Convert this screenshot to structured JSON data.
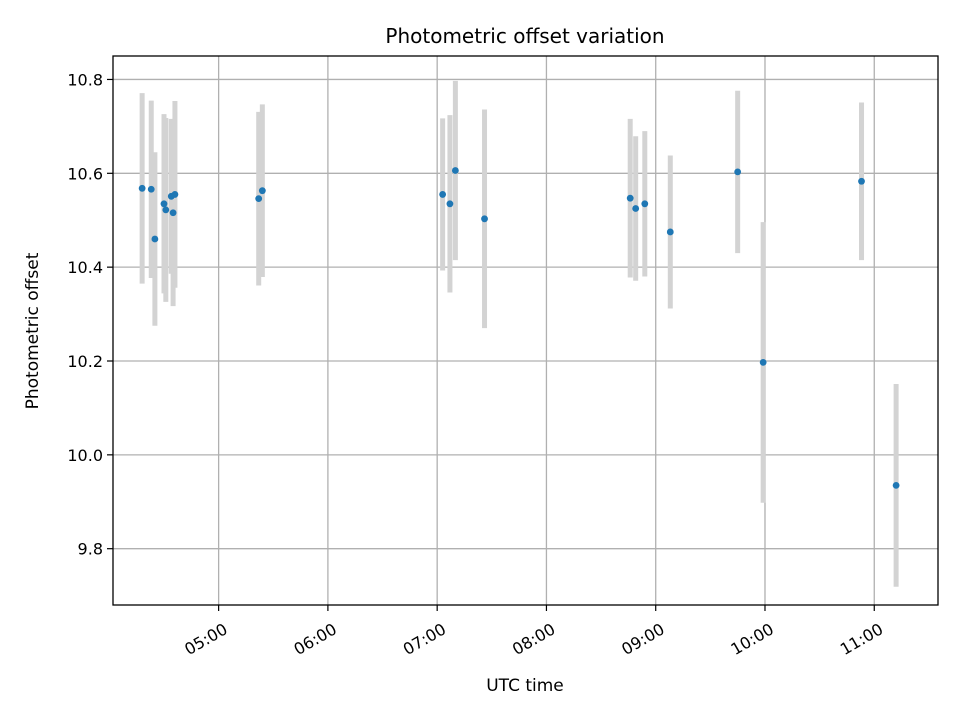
{
  "chart_data": {
    "type": "scatter",
    "title": "Photometric offset variation",
    "xlabel": "UTC time",
    "ylabel": "Photometric offset",
    "xlim": [
      "04:02",
      "11:35"
    ],
    "ylim": [
      9.68,
      10.85
    ],
    "x_ticks": [
      "05:00",
      "06:00",
      "07:00",
      "08:00",
      "09:00",
      "10:00",
      "11:00"
    ],
    "y_ticks": [
      "9.8",
      "10.0",
      "10.2",
      "10.4",
      "10.6",
      "10.8"
    ],
    "grid": true,
    "colors": {
      "marker": "#1f77b4",
      "errorbar": "#d3d3d3",
      "grid": "#b0b0b0"
    },
    "points": [
      {
        "x": "04:18",
        "y": 10.568,
        "err": 0.203
      },
      {
        "x": "04:23",
        "y": 10.566,
        "err": 0.189
      },
      {
        "x": "04:25",
        "y": 10.46,
        "err": 0.185
      },
      {
        "x": "04:30",
        "y": 10.535,
        "err": 0.191
      },
      {
        "x": "04:31",
        "y": 10.522,
        "err": 0.196
      },
      {
        "x": "04:34",
        "y": 10.551,
        "err": 0.165
      },
      {
        "x": "04:35",
        "y": 10.516,
        "err": 0.199
      },
      {
        "x": "04:36",
        "y": 10.555,
        "err": 0.199
      },
      {
        "x": "05:22",
        "y": 10.546,
        "err": 0.185
      },
      {
        "x": "05:24",
        "y": 10.563,
        "err": 0.184
      },
      {
        "x": "07:03",
        "y": 10.555,
        "err": 0.162
      },
      {
        "x": "07:07",
        "y": 10.535,
        "err": 0.189
      },
      {
        "x": "07:10",
        "y": 10.606,
        "err": 0.191
      },
      {
        "x": "07:26",
        "y": 10.503,
        "err": 0.233
      },
      {
        "x": "08:46",
        "y": 10.547,
        "err": 0.169
      },
      {
        "x": "08:49",
        "y": 10.525,
        "err": 0.154
      },
      {
        "x": "08:54",
        "y": 10.535,
        "err": 0.155
      },
      {
        "x": "09:08",
        "y": 10.475,
        "err": 0.163
      },
      {
        "x": "09:45",
        "y": 10.603,
        "err": 0.173
      },
      {
        "x": "09:59",
        "y": 10.197,
        "err": 0.299
      },
      {
        "x": "10:53",
        "y": 10.583,
        "err": 0.168
      },
      {
        "x": "11:12",
        "y": 9.935,
        "err": 0.216
      }
    ]
  }
}
